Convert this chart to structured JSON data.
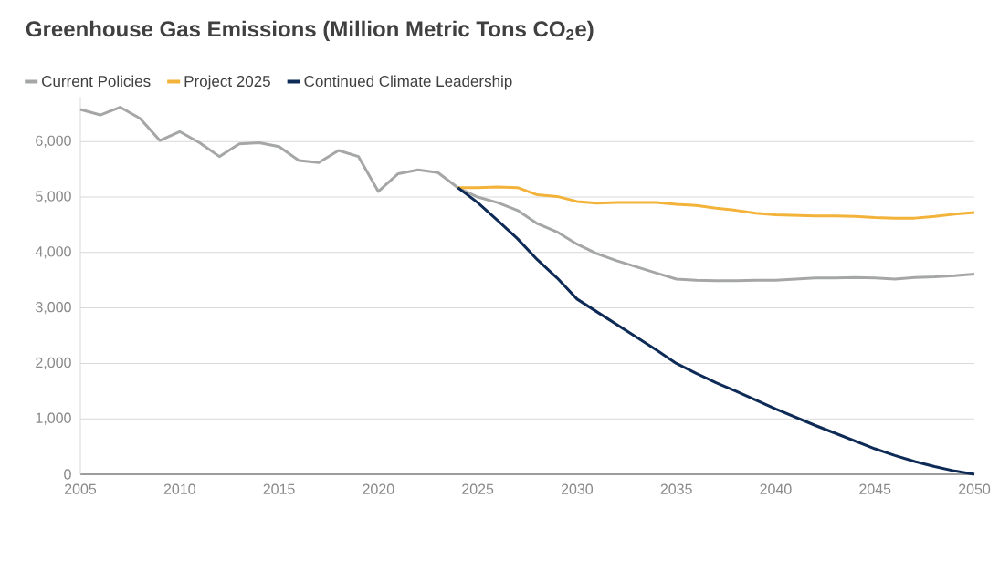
{
  "chart_data": {
    "type": "line",
    "title": "Greenhouse Gas Emissions (Million Metric Tons CO$_{2}$e)",
    "xlim": [
      2005,
      2050
    ],
    "xticks": [
      2005,
      2010,
      2015,
      2020,
      2025,
      2030,
      2035,
      2040,
      2045,
      2050
    ],
    "ylim": [
      0,
      6800
    ],
    "yticks": [
      {
        "value": 0,
        "label": "0"
      },
      {
        "value": 1000,
        "label": "1,000"
      },
      {
        "value": 2000,
        "label": "2,000"
      },
      {
        "value": 3000,
        "label": "3,000"
      },
      {
        "value": 4000,
        "label": "4,000"
      },
      {
        "value": 5000,
        "label": "5,000"
      },
      {
        "value": 6000,
        "label": "6,000"
      }
    ],
    "grid": "y",
    "legend": "top left",
    "marker": "none",
    "line_style": "solid",
    "series": [
      {
        "name": "Current Policies",
        "color": "#a5a7a6",
        "x": [
          2005,
          2006,
          2007,
          2008,
          2009,
          2010,
          2011,
          2012,
          2013,
          2014,
          2015,
          2016,
          2017,
          2018,
          2019,
          2020,
          2021,
          2022,
          2023,
          2024,
          2025,
          2026,
          2027,
          2028,
          2029,
          2030,
          2031,
          2032,
          2033,
          2034,
          2035,
          2036,
          2037,
          2038,
          2039,
          2040,
          2041,
          2042,
          2043,
          2044,
          2045,
          2046,
          2047,
          2048,
          2049,
          2050
        ],
        "values": [
          6580,
          6480,
          6620,
          6420,
          6020,
          6180,
          5980,
          5730,
          5960,
          5980,
          5910,
          5660,
          5620,
          5840,
          5730,
          5100,
          5420,
          5490,
          5440,
          5170,
          5000,
          4900,
          4760,
          4520,
          4370,
          4150,
          3980,
          3850,
          3740,
          3630,
          3520,
          3500,
          3490,
          3490,
          3500,
          3500,
          3520,
          3540,
          3540,
          3550,
          3540,
          3520,
          3550,
          3560,
          3580,
          3610
        ]
      },
      {
        "name": "Project 2025",
        "color": "#f3b23a",
        "x": [
          2024,
          2025,
          2026,
          2027,
          2028,
          2029,
          2030,
          2031,
          2032,
          2033,
          2034,
          2035,
          2036,
          2037,
          2038,
          2039,
          2040,
          2041,
          2042,
          2043,
          2044,
          2045,
          2046,
          2047,
          2048,
          2049,
          2050
        ],
        "values": [
          5170,
          5170,
          5180,
          5170,
          5040,
          5010,
          4920,
          4890,
          4900,
          4900,
          4900,
          4870,
          4850,
          4800,
          4760,
          4710,
          4680,
          4670,
          4660,
          4660,
          4650,
          4630,
          4620,
          4620,
          4650,
          4690,
          4720
        ]
      },
      {
        "name": "Continued Climate Leadership",
        "color": "#0d2b56",
        "x": [
          2024,
          2025,
          2026,
          2027,
          2028,
          2029,
          2030,
          2031,
          2032,
          2033,
          2034,
          2035,
          2036,
          2037,
          2038,
          2039,
          2040,
          2041,
          2042,
          2043,
          2044,
          2045,
          2046,
          2047,
          2048,
          2049,
          2050
        ],
        "values": [
          5170,
          4900,
          4580,
          4250,
          3870,
          3540,
          3160,
          2930,
          2700,
          2470,
          2240,
          2000,
          1820,
          1650,
          1500,
          1340,
          1180,
          1030,
          880,
          740,
          600,
          460,
          340,
          230,
          140,
          60,
          0
        ]
      }
    ]
  }
}
